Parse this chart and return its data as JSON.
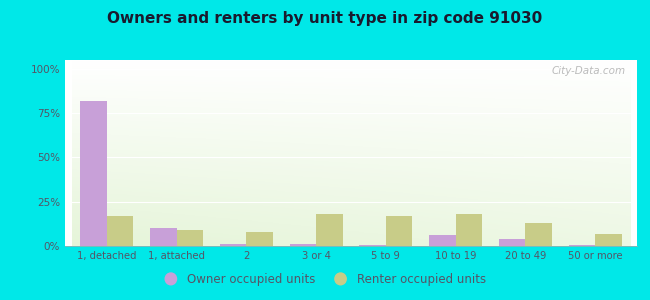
{
  "title": "Owners and renters by unit type in zip code 91030",
  "categories": [
    "1, detached",
    "1, attached",
    "2",
    "3 or 4",
    "5 to 9",
    "10 to 19",
    "20 to 49",
    "50 or more"
  ],
  "owner_values": [
    82,
    10,
    1,
    1,
    0.5,
    6,
    4,
    0.5
  ],
  "renter_values": [
    17,
    9,
    8,
    18,
    17,
    18,
    13,
    7
  ],
  "owner_color": "#c8a0d8",
  "renter_color": "#c8cc88",
  "background_color": "#00e8e8",
  "ylabel_ticks": [
    "0%",
    "25%",
    "50%",
    "75%",
    "100%"
  ],
  "ytick_vals": [
    0,
    25,
    50,
    75,
    100
  ],
  "ylim": [
    0,
    105
  ],
  "bar_width": 0.38,
  "watermark": "City-Data.com",
  "legend_owner": "Owner occupied units",
  "legend_renter": "Renter occupied units",
  "title_color": "#1a1a2e",
  "tick_color": "#555566",
  "grid_color": "#ddddcc"
}
